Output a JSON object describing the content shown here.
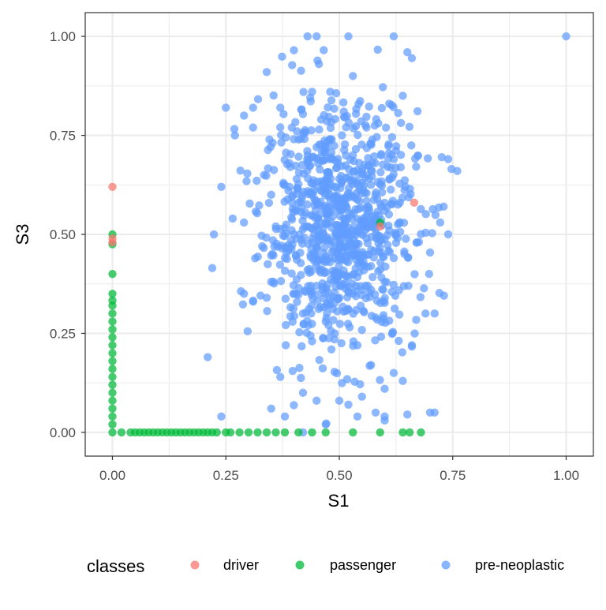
{
  "chart_data": {
    "type": "scatter",
    "xlabel": "S1",
    "ylabel": "S3",
    "xlim": [
      -0.06,
      1.06
    ],
    "ylim": [
      -0.06,
      1.06
    ],
    "x_ticks": [
      0,
      0.25,
      0.5,
      0.75,
      1.0
    ],
    "x_tick_labels": [
      "0.00",
      "0.25",
      "0.50",
      "0.75",
      "1.00"
    ],
    "y_ticks": [
      0,
      0.25,
      0.5,
      0.75,
      1.0
    ],
    "y_tick_labels": [
      "0.00",
      "0.25",
      "0.50",
      "0.75",
      "1.00"
    ],
    "grid": true,
    "legend": {
      "title": "classes",
      "position": "bottom",
      "entries": [
        {
          "label": "driver",
          "color": "#F8766D"
        },
        {
          "label": "passenger",
          "color": "#00BA38"
        },
        {
          "label": "pre-neoplastic",
          "color": "#619CFF"
        }
      ]
    },
    "series": [
      {
        "name": "driver",
        "color": "#F8766D",
        "points": [
          [
            0,
            0.62
          ],
          [
            0,
            0.49
          ],
          [
            0,
            0.48
          ],
          [
            0.665,
            0.58
          ],
          [
            0.59,
            0.52
          ]
        ]
      },
      {
        "name": "passenger",
        "color": "#00BA38",
        "points": [
          [
            0,
            0
          ],
          [
            0,
            0.02
          ],
          [
            0,
            0.04
          ],
          [
            0,
            0.06
          ],
          [
            0,
            0.08
          ],
          [
            0,
            0.1
          ],
          [
            0,
            0.12
          ],
          [
            0,
            0.14
          ],
          [
            0,
            0.16
          ],
          [
            0,
            0.18
          ],
          [
            0,
            0.2
          ],
          [
            0,
            0.22
          ],
          [
            0,
            0.24
          ],
          [
            0,
            0.26
          ],
          [
            0,
            0.28
          ],
          [
            0,
            0.3
          ],
          [
            0,
            0.32
          ],
          [
            0,
            0.333
          ],
          [
            0,
            0.35
          ],
          [
            0,
            0.4
          ],
          [
            0,
            0.475
          ],
          [
            0,
            0.5
          ],
          [
            0.02,
            0
          ],
          [
            0.04,
            0
          ],
          [
            0.05,
            0
          ],
          [
            0.06,
            0
          ],
          [
            0.07,
            0
          ],
          [
            0.08,
            0
          ],
          [
            0.09,
            0
          ],
          [
            0.1,
            0
          ],
          [
            0.11,
            0
          ],
          [
            0.12,
            0
          ],
          [
            0.13,
            0
          ],
          [
            0.14,
            0
          ],
          [
            0.15,
            0
          ],
          [
            0.16,
            0
          ],
          [
            0.17,
            0
          ],
          [
            0.18,
            0
          ],
          [
            0.19,
            0
          ],
          [
            0.2,
            0
          ],
          [
            0.21,
            0
          ],
          [
            0.22,
            0
          ],
          [
            0.23,
            0
          ],
          [
            0.25,
            0
          ],
          [
            0.26,
            0
          ],
          [
            0.28,
            0
          ],
          [
            0.3,
            0
          ],
          [
            0.32,
            0
          ],
          [
            0.34,
            0
          ],
          [
            0.36,
            0
          ],
          [
            0.38,
            0
          ],
          [
            0.41,
            0
          ],
          [
            0.44,
            0
          ],
          [
            0.47,
            0
          ],
          [
            0.53,
            0
          ],
          [
            0.59,
            0
          ],
          [
            0.64,
            0
          ],
          [
            0.655,
            0
          ],
          [
            0.68,
            0
          ],
          [
            0.59,
            0.53
          ]
        ]
      },
      {
        "name": "pre-neoplastic",
        "color": "#619CFF",
        "points": [
          [
            1.0,
            1.0
          ],
          [
            0.43,
            1.0
          ],
          [
            0.45,
            1.0
          ],
          [
            0.52,
            1.0
          ],
          [
            0.62,
            1.0
          ],
          [
            0.4,
            0.965
          ],
          [
            0.455,
            0.93
          ],
          [
            0.34,
            0.91
          ],
          [
            0.65,
            0.96
          ],
          [
            0.66,
            0.945
          ],
          [
            0.53,
            0.9
          ],
          [
            0.48,
            0.86
          ],
          [
            0.25,
            0.82
          ],
          [
            0.29,
            0.8
          ],
          [
            0.31,
            0.82
          ],
          [
            0.37,
            0.82
          ],
          [
            0.44,
            0.86
          ],
          [
            0.61,
            0.83
          ],
          [
            0.64,
            0.85
          ],
          [
            0.27,
            0.75
          ],
          [
            0.31,
            0.77
          ],
          [
            0.74,
            0.69
          ],
          [
            0.76,
            0.66
          ],
          [
            0.24,
            0.62
          ],
          [
            0.265,
            0.54
          ],
          [
            0.22,
            0.415
          ],
          [
            0.29,
            0.35
          ],
          [
            0.31,
            0.33
          ],
          [
            0.34,
            0.34
          ],
          [
            0.57,
            0.36
          ],
          [
            0.73,
            0.57
          ],
          [
            0.74,
            0.5
          ],
          [
            0.71,
            0.3
          ],
          [
            0.69,
            0.3
          ],
          [
            0.66,
            0.22
          ],
          [
            0.57,
            0.17
          ],
          [
            0.62,
            0.15
          ],
          [
            0.64,
            0.13
          ],
          [
            0.21,
            0.19
          ],
          [
            0.24,
            0.04
          ],
          [
            0.35,
            0.06
          ],
          [
            0.38,
            0.04
          ],
          [
            0.42,
            0.0
          ],
          [
            0.45,
            0.08
          ],
          [
            0.5,
            0.08
          ],
          [
            0.52,
            0.07
          ],
          [
            0.58,
            0.05
          ],
          [
            0.6,
            0.03
          ],
          [
            0.65,
            0.045
          ],
          [
            0.7,
            0.05
          ],
          [
            0.71,
            0.05
          ],
          [
            0.37,
            0.14
          ],
          [
            0.42,
            0.1
          ],
          [
            0.55,
            0.09
          ],
          [
            0.6,
            0.11
          ],
          [
            0.47,
            0.02
          ],
          [
            0.54,
            0.04
          ],
          [
            0.6,
            0.04
          ],
          [
            0.43,
            0.7
          ],
          [
            0.45,
            0.72
          ],
          [
            0.35,
            0.6
          ],
          [
            0.39,
            0.62
          ],
          [
            0.41,
            0.58
          ],
          [
            0.46,
            0.61
          ],
          [
            0.5,
            0.64
          ],
          [
            0.55,
            0.63
          ],
          [
            0.58,
            0.6
          ],
          [
            0.6,
            0.56
          ],
          [
            0.36,
            0.52
          ],
          [
            0.4,
            0.5
          ],
          [
            0.44,
            0.48
          ],
          [
            0.47,
            0.53
          ],
          [
            0.52,
            0.5
          ],
          [
            0.56,
            0.49
          ],
          [
            0.61,
            0.51
          ],
          [
            0.33,
            0.47
          ],
          [
            0.38,
            0.44
          ],
          [
            0.43,
            0.41
          ],
          [
            0.48,
            0.43
          ],
          [
            0.53,
            0.45
          ],
          [
            0.57,
            0.42
          ],
          [
            0.62,
            0.44
          ],
          [
            0.35,
            0.38
          ],
          [
            0.4,
            0.35
          ],
          [
            0.45,
            0.37
          ],
          [
            0.5,
            0.34
          ],
          [
            0.55,
            0.36
          ],
          [
            0.6,
            0.38
          ],
          [
            0.42,
            0.3
          ],
          [
            0.47,
            0.28
          ],
          [
            0.52,
            0.31
          ],
          [
            0.58,
            0.29
          ],
          [
            0.44,
            0.23
          ],
          [
            0.49,
            0.25
          ],
          [
            0.54,
            0.22
          ],
          [
            0.39,
            0.68
          ],
          [
            0.48,
            0.74
          ],
          [
            0.53,
            0.7
          ],
          [
            0.57,
            0.73
          ],
          [
            0.62,
            0.69
          ],
          [
            0.46,
            0.79
          ],
          [
            0.51,
            0.81
          ],
          [
            0.56,
            0.77
          ]
        ]
      }
    ]
  }
}
